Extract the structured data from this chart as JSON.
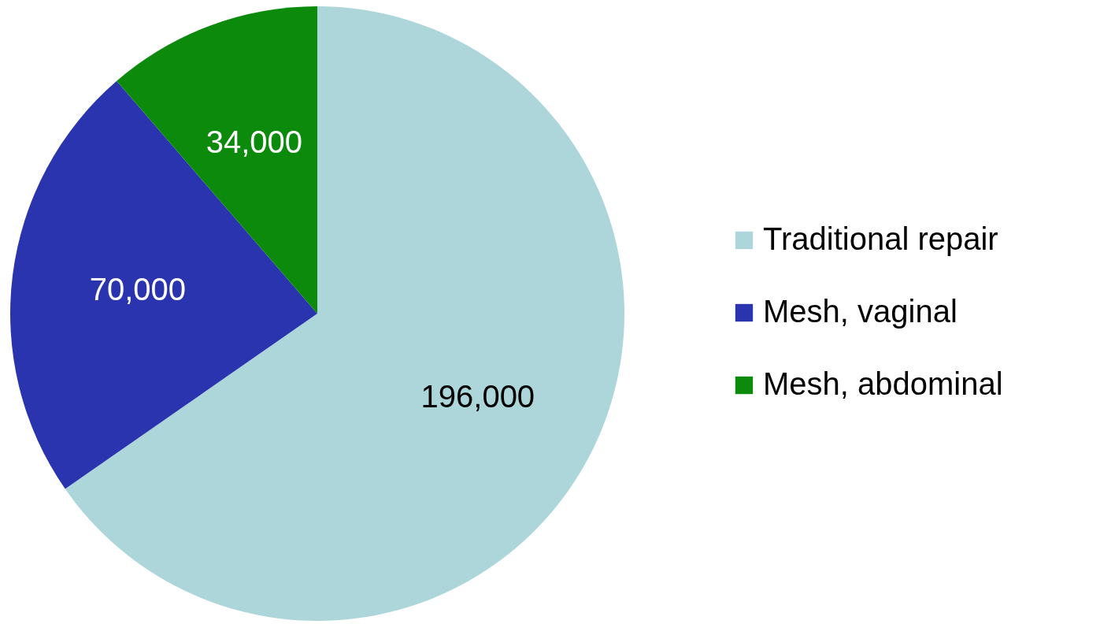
{
  "chart_data": {
    "type": "pie",
    "categories": [
      "Traditional repair",
      "Mesh, vaginal",
      "Mesh, abdominal"
    ],
    "values": [
      196000,
      70000,
      34000
    ],
    "colors": [
      "#acd6da",
      "#2a34ae",
      "#0b8a0b"
    ],
    "value_labels": [
      "196,000",
      "70,000",
      "34,000"
    ],
    "legend": "right"
  }
}
